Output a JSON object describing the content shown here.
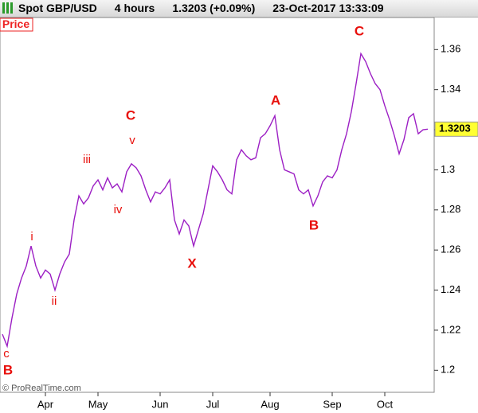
{
  "header": {
    "symbol": "Spot GBP/USD",
    "timeframe": "4 hours",
    "quote": "1.3203 (+0.09%)",
    "timestamp": "23-Oct-2017 13:33:09"
  },
  "panel_label": "Price",
  "copyright": "© ProRealTime.com",
  "chart_data": {
    "type": "line",
    "color": "#9c1fc4",
    "categories": [
      null,
      null,
      null,
      null,
      null,
      null,
      null,
      null,
      null,
      "Apr",
      null,
      null,
      null,
      null,
      null,
      null,
      null,
      null,
      null,
      null,
      "May",
      null,
      null,
      null,
      null,
      null,
      null,
      null,
      null,
      null,
      null,
      null,
      null,
      "Jun",
      null,
      null,
      null,
      null,
      null,
      null,
      null,
      null,
      null,
      null,
      "Jul",
      null,
      null,
      null,
      null,
      null,
      null,
      null,
      null,
      null,
      null,
      null,
      "Aug",
      null,
      null,
      null,
      null,
      null,
      null,
      null,
      null,
      null,
      null,
      null,
      null,
      "Sep",
      null,
      null,
      null,
      null,
      null,
      null,
      null,
      null,
      null,
      null,
      "Oct",
      null,
      null,
      null,
      null,
      null,
      null,
      null,
      null,
      null
    ],
    "values": [
      1.218,
      1.212,
      1.226,
      1.238,
      1.246,
      1.252,
      1.262,
      1.252,
      1.246,
      1.25,
      1.248,
      1.24,
      1.248,
      1.254,
      1.258,
      1.275,
      1.287,
      1.283,
      1.286,
      1.292,
      1.295,
      1.29,
      1.296,
      1.291,
      1.293,
      1.289,
      1.299,
      1.303,
      1.301,
      1.297,
      1.29,
      1.284,
      1.289,
      1.288,
      1.291,
      1.295,
      1.275,
      1.268,
      1.275,
      1.272,
      1.262,
      1.27,
      1.278,
      1.29,
      1.302,
      1.299,
      1.295,
      1.29,
      1.288,
      1.305,
      1.31,
      1.307,
      1.305,
      1.306,
      1.316,
      1.318,
      1.322,
      1.327,
      1.31,
      1.3,
      1.299,
      1.298,
      1.29,
      1.288,
      1.29,
      1.282,
      1.287,
      1.294,
      1.297,
      1.296,
      1.3,
      1.31,
      1.318,
      1.329,
      1.343,
      1.358,
      1.354,
      1.348,
      1.343,
      1.34,
      1.332,
      1.325,
      1.317,
      1.308,
      1.315,
      1.326,
      1.328,
      1.318,
      1.32,
      1.3203
    ],
    "last_price": 1.3203,
    "ylim": [
      1.189,
      1.376
    ],
    "yticks": [
      1.2,
      1.22,
      1.24,
      1.26,
      1.28,
      1.3,
      1.32,
      1.34,
      1.36
    ],
    "annotations": [
      "c",
      "B",
      "i",
      "ii",
      "iii",
      "iv",
      "v",
      "C",
      "X",
      "A",
      "B",
      "C"
    ],
    "annotation_color": "#e8100c"
  }
}
